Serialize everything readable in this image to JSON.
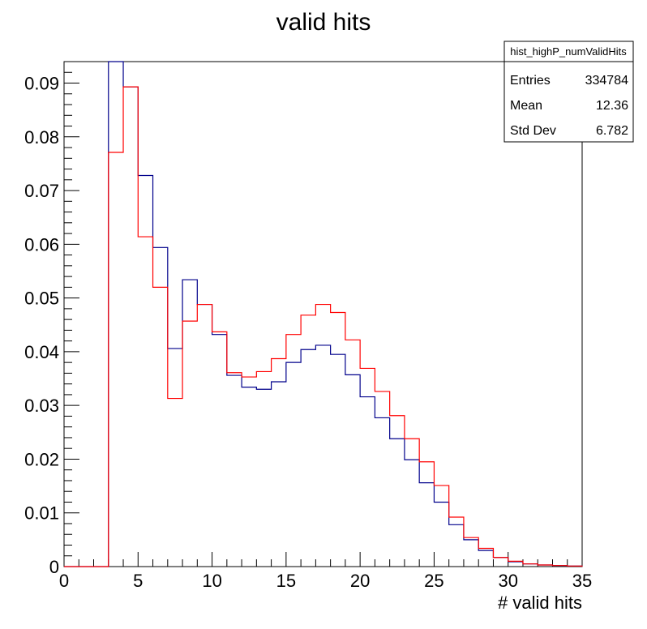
{
  "chart_data": {
    "type": "histogram",
    "title": "valid hits",
    "xlabel": "# valid hits",
    "ylabel": "",
    "xlim": [
      0,
      35
    ],
    "ylim": [
      0,
      0.094
    ],
    "x_ticks": [
      0,
      5,
      10,
      15,
      20,
      25,
      30,
      35
    ],
    "y_ticks": [
      0,
      0.01,
      0.02,
      0.03,
      0.04,
      0.05,
      0.06,
      0.07,
      0.08,
      0.09
    ],
    "x_tick_labels": [
      "0",
      "5",
      "10",
      "15",
      "20",
      "25",
      "30",
      "35"
    ],
    "y_tick_labels": [
      "0",
      "0.01",
      "0.02",
      "0.03",
      "0.04",
      "0.05",
      "0.06",
      "0.07",
      "0.08",
      "0.09"
    ],
    "bin_edges": [
      0,
      1,
      2,
      3,
      4,
      5,
      6,
      7,
      8,
      9,
      10,
      11,
      12,
      13,
      14,
      15,
      16,
      17,
      18,
      19,
      20,
      21,
      22,
      23,
      24,
      25,
      26,
      27,
      28,
      29,
      30,
      31,
      32,
      33,
      34,
      35
    ],
    "series": [
      {
        "color": "#00008b",
        "values": [
          0,
          0,
          0,
          0.094,
          0.0893,
          0.0728,
          0.0594,
          0.0406,
          0.0534,
          0.0488,
          0.0432,
          0.0356,
          0.0334,
          0.033,
          0.0344,
          0.038,
          0.0404,
          0.0412,
          0.0395,
          0.0357,
          0.0316,
          0.0277,
          0.0238,
          0.0199,
          0.0156,
          0.012,
          0.0078,
          0.005,
          0.003,
          0.0017,
          0.0009,
          0.0005,
          0.0003,
          0.0002,
          0.0001
        ]
      },
      {
        "color": "#ff0000",
        "values": [
          0,
          0,
          0,
          0.0771,
          0.0893,
          0.0614,
          0.052,
          0.0313,
          0.0457,
          0.0488,
          0.0437,
          0.0361,
          0.0353,
          0.0363,
          0.0387,
          0.0432,
          0.0468,
          0.0488,
          0.0473,
          0.0422,
          0.0369,
          0.0326,
          0.0281,
          0.0238,
          0.0195,
          0.0151,
          0.0092,
          0.0054,
          0.0034,
          0.0017,
          0.001,
          0.0005,
          0.0003,
          0.0002,
          0.0001
        ]
      }
    ],
    "stats_box": {
      "name": "hist_highP_numValidHits",
      "rows": [
        {
          "label": "Entries",
          "value": "334784"
        },
        {
          "label": "Mean",
          "value": "12.36"
        },
        {
          "label": "Std Dev",
          "value": "6.782"
        }
      ]
    },
    "grid": false
  }
}
